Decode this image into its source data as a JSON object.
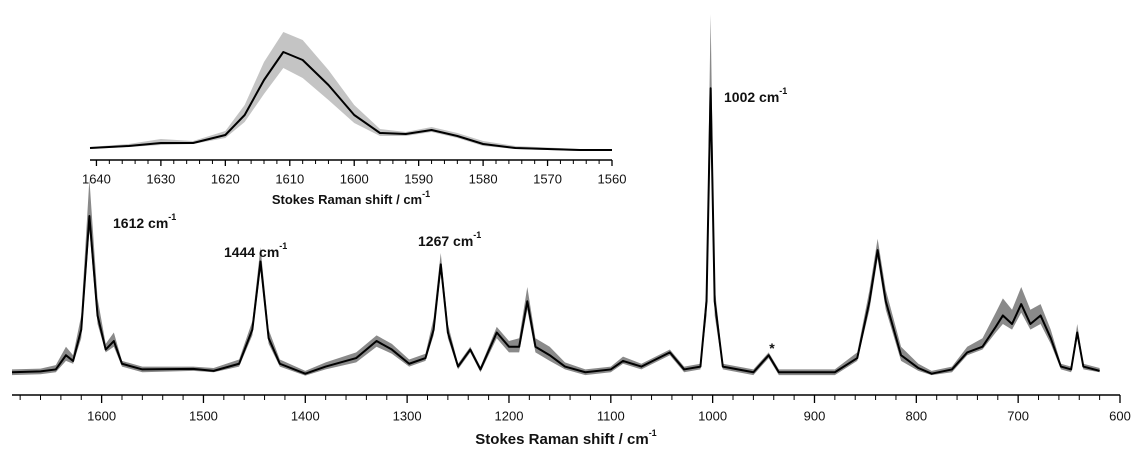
{
  "chart_data": [
    {
      "type": "line",
      "x_label": "Stokes Raman shift / cm",
      "x_label_sup": "-1",
      "xlim": [
        1688,
        600
      ],
      "ylim": [
        -0.08,
        1.3
      ],
      "xticks": [
        1600,
        1500,
        1400,
        1300,
        1200,
        1100,
        1000,
        900,
        800,
        700,
        600
      ],
      "xminorticks": [
        1680,
        1660,
        1640,
        1620,
        1580,
        1560,
        1540,
        1520,
        1480,
        1460,
        1440,
        1420,
        1380,
        1360,
        1340,
        1320,
        1280,
        1260,
        1240,
        1220,
        1180,
        1160,
        1140,
        1120,
        1080,
        1060,
        1040,
        1020,
        980,
        960,
        940,
        920,
        880,
        860,
        840,
        820,
        780,
        760,
        740,
        720,
        680,
        660,
        640,
        620
      ],
      "x": [
        1688,
        1660,
        1645,
        1635,
        1628,
        1620,
        1612,
        1604,
        1596,
        1588,
        1580,
        1560,
        1510,
        1490,
        1465,
        1452,
        1444,
        1436,
        1425,
        1400,
        1380,
        1350,
        1330,
        1315,
        1298,
        1282,
        1274,
        1267,
        1260,
        1250,
        1238,
        1228,
        1212,
        1200,
        1190,
        1182,
        1174,
        1160,
        1145,
        1125,
        1100,
        1088,
        1070,
        1042,
        1028,
        1012,
        1006,
        1002,
        998,
        990,
        960,
        945,
        935,
        880,
        858,
        846,
        838,
        830,
        815,
        798,
        785,
        765,
        750,
        735,
        722,
        715,
        706,
        697,
        688,
        678,
        668,
        658,
        648,
        642,
        636,
        620
      ],
      "series": [
        {
          "color": "#000000",
          "band_color": "#8a8a8a",
          "values": [
            0,
            0.003,
            0.01,
            0.06,
            0.04,
            0.15,
            0.55,
            0.2,
            0.08,
            0.11,
            0.03,
            0.01,
            0.012,
            0.005,
            0.03,
            0.15,
            0.39,
            0.12,
            0.03,
            -0.005,
            0.02,
            0.05,
            0.11,
            0.08,
            0.03,
            0.05,
            0.15,
            0.38,
            0.14,
            0.02,
            0.08,
            0.01,
            0.14,
            0.09,
            0.09,
            0.25,
            0.09,
            0.06,
            0.02,
            0,
            0.01,
            0.04,
            0.02,
            0.07,
            0.01,
            0.02,
            0.25,
            1.0,
            0.25,
            0.02,
            0,
            0.06,
            0,
            0,
            0.05,
            0.25,
            0.43,
            0.25,
            0.06,
            0.015,
            -0.005,
            0.01,
            0.07,
            0.09,
            0.16,
            0.2,
            0.17,
            0.24,
            0.17,
            0.2,
            0.12,
            0.02,
            0.01,
            0.14,
            0.02,
            0.005
          ],
          "upper": [
            0.01,
            0.013,
            0.025,
            0.09,
            0.06,
            0.2,
            0.68,
            0.26,
            0.1,
            0.14,
            0.04,
            0.02,
            0.02,
            0.015,
            0.045,
            0.18,
            0.44,
            0.15,
            0.045,
            0.005,
            0.035,
            0.07,
            0.13,
            0.1,
            0.045,
            0.065,
            0.19,
            0.42,
            0.17,
            0.03,
            0.09,
            0.02,
            0.16,
            0.11,
            0.12,
            0.3,
            0.12,
            0.09,
            0.035,
            0.01,
            0.02,
            0.055,
            0.03,
            0.08,
            0.02,
            0.03,
            0.3,
            1.26,
            0.3,
            0.03,
            0.01,
            0.07,
            0.01,
            0.01,
            0.07,
            0.29,
            0.47,
            0.29,
            0.09,
            0.03,
            0.005,
            0.02,
            0.09,
            0.12,
            0.21,
            0.26,
            0.22,
            0.3,
            0.22,
            0.24,
            0.15,
            0.03,
            0.02,
            0.17,
            0.03,
            0.015
          ],
          "lower": [
            -0.01,
            -0.007,
            0,
            0.04,
            0.03,
            0.12,
            0.5,
            0.17,
            0.07,
            0.09,
            0.02,
            0,
            0.005,
            0,
            0.02,
            0.13,
            0.36,
            0.1,
            0.02,
            -0.012,
            0.01,
            0.035,
            0.09,
            0.065,
            0.02,
            0.04,
            0.13,
            0.35,
            0.12,
            0.01,
            0.07,
            0,
            0.12,
            0.07,
            0.07,
            0.22,
            0.07,
            0.04,
            0.01,
            -0.01,
            0,
            0.03,
            0.01,
            0.06,
            0,
            0.01,
            0.2,
            0.9,
            0.2,
            0.01,
            -0.01,
            0.05,
            -0.01,
            -0.01,
            0.04,
            0.22,
            0.4,
            0.22,
            0.04,
            0.005,
            -0.01,
            0,
            0.06,
            0.08,
            0.14,
            0.17,
            0.15,
            0.21,
            0.15,
            0.17,
            0.1,
            0.01,
            0,
            0.12,
            0.01,
            0
          ]
        }
      ],
      "annotations": [
        {
          "text": "1612 cm",
          "sup": "-1"
        },
        {
          "text": "1444 cm",
          "sup": "-1"
        },
        {
          "text": "1267 cm",
          "sup": "-1"
        },
        {
          "text": "1002 cm",
          "sup": "-1"
        },
        {
          "text": "*"
        }
      ]
    },
    {
      "type": "line",
      "x_label": "Stokes Raman shift / cm",
      "x_label_sup": "-1",
      "xlim": [
        1641,
        1560
      ],
      "ylim": [
        0,
        1.3
      ],
      "xticks": [
        1640,
        1630,
        1620,
        1610,
        1600,
        1590,
        1580,
        1570,
        1560
      ],
      "xminorticks": [
        1638,
        1636,
        1634,
        1632,
        1628,
        1626,
        1624,
        1622,
        1618,
        1616,
        1614,
        1612,
        1608,
        1606,
        1604,
        1602,
        1598,
        1596,
        1594,
        1592,
        1588,
        1586,
        1584,
        1582,
        1578,
        1576,
        1574,
        1572,
        1568,
        1566,
        1564,
        1562
      ],
      "x": [
        1641,
        1635,
        1630,
        1625,
        1620,
        1617,
        1614,
        1611,
        1608,
        1604,
        1600,
        1596,
        1592,
        1588,
        1584,
        1580,
        1575,
        1565,
        1560
      ],
      "series": [
        {
          "color": "#000000",
          "band_color": "#c4c4c4",
          "values": [
            0.12,
            0.14,
            0.17,
            0.17,
            0.25,
            0.45,
            0.8,
            1.08,
            1.0,
            0.75,
            0.45,
            0.27,
            0.26,
            0.3,
            0.24,
            0.16,
            0.12,
            0.1,
            0.1
          ],
          "upper": [
            0.13,
            0.16,
            0.21,
            0.19,
            0.29,
            0.55,
            0.98,
            1.28,
            1.2,
            0.9,
            0.55,
            0.31,
            0.28,
            0.33,
            0.27,
            0.19,
            0.14,
            0.11,
            0.11
          ],
          "lower": [
            0.11,
            0.13,
            0.15,
            0.16,
            0.22,
            0.38,
            0.66,
            0.92,
            0.82,
            0.6,
            0.37,
            0.24,
            0.24,
            0.28,
            0.22,
            0.14,
            0.11,
            0.09,
            0.09
          ]
        }
      ]
    }
  ]
}
